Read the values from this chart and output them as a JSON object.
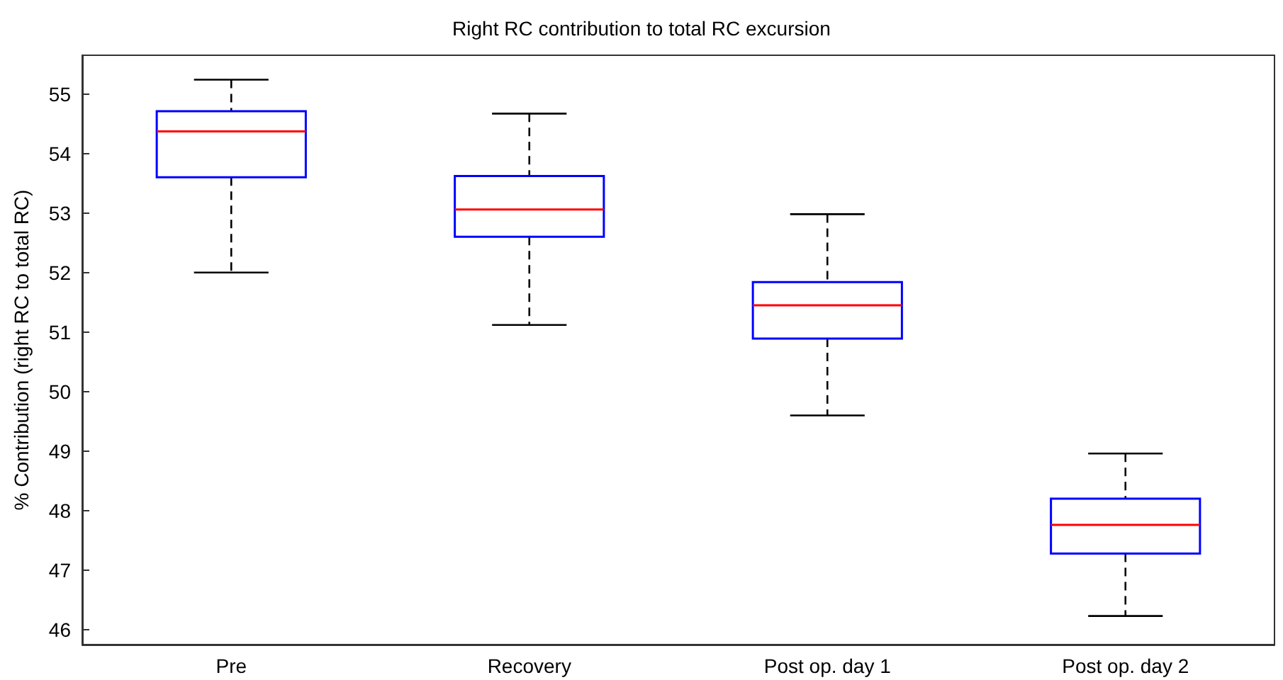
{
  "chart_data": {
    "type": "box",
    "title": "Right RC contribution to total RC excursion",
    "ylabel": "% Contribution (right RC to total RC)",
    "categories": [
      "Pre",
      "Recovery",
      "Post op. day 1",
      "Post op. day 2"
    ],
    "boxes": [
      {
        "low": 52.0,
        "q1": 53.6,
        "median": 54.37,
        "q3": 54.71,
        "high": 55.24
      },
      {
        "low": 51.12,
        "q1": 52.6,
        "median": 53.06,
        "q3": 53.62,
        "high": 54.67
      },
      {
        "low": 49.6,
        "q1": 50.89,
        "median": 51.45,
        "q3": 51.84,
        "high": 52.98
      },
      {
        "low": 46.23,
        "q1": 47.28,
        "median": 47.76,
        "q3": 48.2,
        "high": 48.96
      }
    ],
    "color": "#0000ff",
    "ylim": [
      45.75,
      55.65
    ],
    "yticks": [
      46,
      47,
      48,
      49,
      50,
      51,
      52,
      53,
      54,
      55
    ],
    "grid": false
  }
}
